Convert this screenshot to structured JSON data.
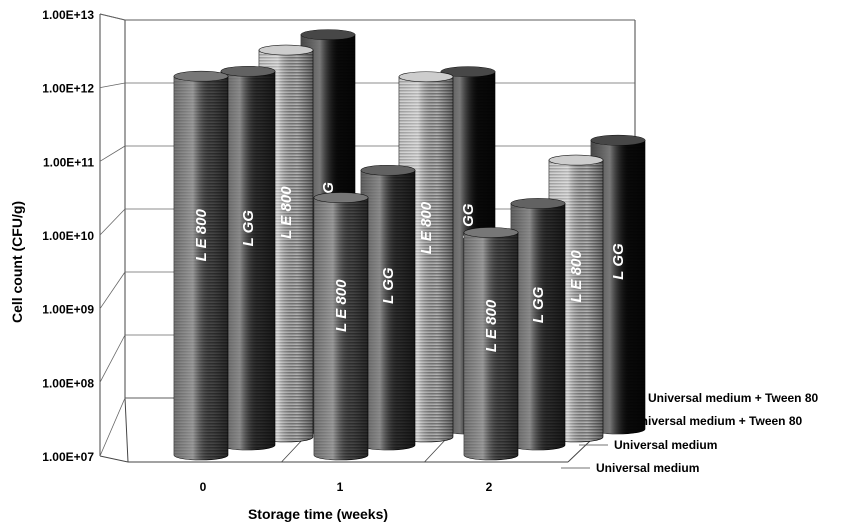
{
  "chart_data": {
    "type": "bar",
    "subtype": "3d-cylinder",
    "title": "",
    "xlabel": "Storage time (weeks)",
    "ylabel": "Cell count (CFU/g)",
    "y_scale": "log",
    "ylim": [
      10000000.0,
      10000000000000.0
    ],
    "y_tick_labels": [
      "1.00E+07",
      "1.00E+08",
      "1.00E+09",
      "1.00E+10",
      "1.00E+11",
      "1.00E+12",
      "1.00E+13"
    ],
    "categories": [
      "0",
      "1",
      "2"
    ],
    "grid": true,
    "series": [
      {
        "name": "Universal medium",
        "bar_label": "L E 800",
        "color": "#4a4a4a",
        "values": [
          2000000000000.0,
          40000000000.0,
          13000000000.0
        ]
      },
      {
        "name": "Universal medium",
        "bar_label": "L GG",
        "color": "#2e2e2e",
        "values": [
          1700000000000.0,
          70000000000.0,
          24000000000.0
        ]
      },
      {
        "name": "Universal medium + Tween 80",
        "bar_label": "L E 800",
        "color": "#bdbdbd",
        "values": [
          2600000000000.0,
          1100000000000.0,
          75000000000.0
        ]
      },
      {
        "name": "Universal medium + Tween 80",
        "bar_label": "L GG",
        "color": "#0a0a0a",
        "values": [
          3300000000000.0,
          1000000000000.0,
          110000000000.0
        ]
      }
    ]
  }
}
